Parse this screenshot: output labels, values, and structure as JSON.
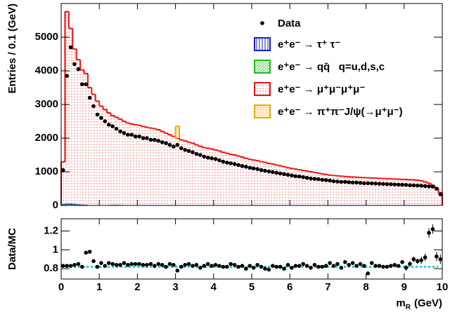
{
  "chart_data": {
    "type": "histogram",
    "y_label": "Entries / 0.1 (GeV)",
    "x_label": {
      "symbol": "m",
      "subscript": "R",
      "unit": "(GeV)"
    },
    "xlim": [
      0,
      10
    ],
    "xticks": [
      0,
      1,
      2,
      3,
      4,
      5,
      6,
      7,
      8,
      9,
      10
    ],
    "ylim": [
      0,
      6000
    ],
    "yticks": [
      0,
      1000,
      2000,
      3000,
      4000,
      5000
    ],
    "bins": [
      0,
      0.1,
      0.2,
      0.3,
      0.4,
      0.5,
      0.6,
      0.7,
      0.8,
      0.9,
      1,
      1.1,
      1.2,
      1.3,
      1.4,
      1.5,
      1.6,
      1.7,
      1.8,
      1.9,
      2,
      2.1,
      2.2,
      2.3,
      2.4,
      2.5,
      2.6,
      2.7,
      2.8,
      2.9,
      3,
      3.1,
      3.2,
      3.3,
      3.4,
      3.5,
      3.6,
      3.7,
      3.8,
      3.9,
      4,
      4.1,
      4.2,
      4.3,
      4.4,
      4.5,
      4.6,
      4.7,
      4.8,
      4.9,
      5,
      5.1,
      5.2,
      5.3,
      5.4,
      5.5,
      5.6,
      5.7,
      5.8,
      5.9,
      6,
      6.1,
      6.2,
      6.3,
      6.4,
      6.5,
      6.6,
      6.7,
      6.8,
      6.9,
      7,
      7.1,
      7.2,
      7.3,
      7.4,
      7.5,
      7.6,
      7.7,
      7.8,
      7.9,
      8,
      8.1,
      8.2,
      8.3,
      8.4,
      8.5,
      8.6,
      8.7,
      8.8,
      8.9,
      9,
      9.1,
      9.2,
      9.3,
      9.4,
      9.5,
      9.6,
      9.7,
      9.8,
      9.9,
      10
    ],
    "series": [
      {
        "name": "e⁺e⁻ → τ⁺ τ⁻",
        "color": "#1a1acc",
        "fill_style": "vertical",
        "values": [
          30,
          40,
          40,
          35,
          30,
          25,
          20,
          0,
          0,
          0,
          0,
          0,
          0,
          0,
          0,
          0,
          0,
          0,
          0,
          0,
          0,
          0,
          0,
          0,
          0,
          0,
          0,
          0,
          0,
          0,
          0,
          0,
          0,
          0,
          0,
          0,
          0,
          0,
          0,
          0,
          0,
          0,
          0,
          0,
          0,
          0,
          0,
          0,
          0,
          0,
          0,
          0,
          0,
          0,
          0,
          0,
          0,
          0,
          0,
          0,
          0,
          0,
          0,
          0,
          0,
          0,
          0,
          0,
          0,
          0,
          0,
          0,
          0,
          0,
          0,
          0,
          0,
          0,
          0,
          0,
          0,
          0,
          0,
          0,
          0,
          0,
          0,
          0,
          0,
          0,
          0,
          0,
          0,
          0,
          0,
          0,
          0,
          0,
          0,
          0
        ]
      },
      {
        "name": "e⁺e⁻ → qq̄   q=u,d,s,c",
        "color": "#22bb22",
        "fill_style": "diagonal",
        "values": [
          15,
          20,
          20,
          15,
          0,
          0,
          0,
          0,
          0,
          0,
          0,
          0,
          0,
          20,
          20,
          15,
          0,
          0,
          0,
          0,
          0,
          0,
          0,
          0,
          0,
          0,
          0,
          0,
          0,
          0,
          0,
          0,
          0,
          0,
          0,
          0,
          0,
          0,
          0,
          0,
          0,
          0,
          0,
          0,
          0,
          0,
          0,
          0,
          0,
          0,
          0,
          0,
          0,
          0,
          0,
          0,
          0,
          0,
          0,
          0,
          0,
          0,
          0,
          0,
          0,
          0,
          0,
          0,
          0,
          0,
          0,
          0,
          0,
          0,
          0,
          0,
          0,
          0,
          0,
          0,
          0,
          0,
          0,
          0,
          0,
          0,
          0,
          0,
          0,
          0,
          0,
          0,
          0,
          0,
          0,
          0,
          0,
          0,
          0,
          0
        ]
      },
      {
        "name": "e⁺e⁻ → μ⁺μ⁻μ⁺μ⁻",
        "color": "#ee1111",
        "fill_style": "dots",
        "values": [
          1250,
          5700,
          5200,
          4600,
          4300,
          4000,
          3900,
          3500,
          3300,
          3100,
          2950,
          2850,
          2750,
          2650,
          2600,
          2550,
          2500,
          2450,
          2420,
          2400,
          2380,
          2350,
          2320,
          2300,
          2280,
          2250,
          2200,
          2150,
          2100,
          2050,
          2000,
          1950,
          1920,
          1880,
          1850,
          1800,
          1760,
          1720,
          1700,
          1680,
          1650,
          1620,
          1580,
          1550,
          1520,
          1500,
          1470,
          1440,
          1400,
          1370,
          1350,
          1330,
          1300,
          1280,
          1250,
          1230,
          1200,
          1180,
          1150,
          1120,
          1100,
          1080,
          1060,
          1040,
          1020,
          1000,
          980,
          960,
          940,
          920,
          900,
          890,
          880,
          870,
          860,
          850,
          845,
          840,
          830,
          825,
          820,
          815,
          810,
          805,
          800,
          795,
          790,
          785,
          780,
          775,
          770,
          765,
          760,
          750,
          730,
          700,
          660,
          600,
          520,
          380
        ]
      },
      {
        "name": "e⁺e⁻ → π⁺π⁻J/ψ(→μ⁺μ⁻)",
        "color": "#f0a800",
        "fill_style": "boxes",
        "values": [
          0,
          0,
          0,
          0,
          0,
          0,
          0,
          0,
          0,
          0,
          0,
          0,
          0,
          0,
          0,
          0,
          0,
          0,
          0,
          0,
          0,
          0,
          0,
          0,
          0,
          0,
          0,
          0,
          0,
          0,
          350,
          0,
          0,
          0,
          0,
          0,
          0,
          0,
          0,
          0,
          0,
          0,
          0,
          0,
          0,
          0,
          0,
          0,
          0,
          0,
          0,
          0,
          0,
          0,
          0,
          0,
          0,
          0,
          0,
          0,
          0,
          0,
          0,
          0,
          0,
          0,
          0,
          0,
          0,
          0,
          0,
          0,
          0,
          0,
          0,
          0,
          0,
          0,
          0,
          0,
          0,
          0,
          0,
          0,
          0,
          0,
          0,
          0,
          0,
          0,
          0,
          0,
          0,
          0,
          0,
          0,
          0,
          0,
          0,
          0
        ]
      }
    ],
    "data": {
      "name": "Data",
      "color": "#000000",
      "values": [
        1050,
        3850,
        4700,
        4200,
        4050,
        3600,
        3600,
        3200,
        2950,
        2700,
        2600,
        2500,
        2400,
        2350,
        2280,
        2200,
        2150,
        2100,
        2100,
        2050,
        2050,
        2000,
        2000,
        1950,
        1950,
        1920,
        1880,
        1850,
        1800,
        1750,
        1800,
        1700,
        1650,
        1620,
        1580,
        1530,
        1500,
        1450,
        1420,
        1400,
        1380,
        1340,
        1300,
        1270,
        1250,
        1230,
        1200,
        1170,
        1150,
        1120,
        1100,
        1080,
        1050,
        1030,
        1010,
        990,
        970,
        950,
        930,
        910,
        890,
        870,
        860,
        840,
        820,
        800,
        790,
        780,
        760,
        750,
        740,
        720,
        710,
        700,
        700,
        690,
        680,
        680,
        670,
        660,
        660,
        655,
        650,
        645,
        640,
        635,
        630,
        625,
        620,
        615,
        610,
        600,
        595,
        590,
        585,
        575,
        565,
        560,
        500,
        330
      ]
    },
    "ratio": {
      "y_label": "Data/MC",
      "ylim": [
        0.69,
        1.33
      ],
      "yticks": [
        0.8,
        1,
        1.2
      ],
      "fit_level": 0.82,
      "fit_color": "#00d8e8",
      "values": [
        0.83,
        0.83,
        0.83,
        0.84,
        0.85,
        0.82,
        0.97,
        0.98,
        0.88,
        0.82,
        0.86,
        0.83,
        0.86,
        0.85,
        0.84,
        0.84,
        0.86,
        0.84,
        0.85,
        0.85,
        0.85,
        0.84,
        0.84,
        0.85,
        0.83,
        0.85,
        0.84,
        0.82,
        0.85,
        0.84,
        0.78,
        0.82,
        0.84,
        0.85,
        0.83,
        0.84,
        0.81,
        0.83,
        0.85,
        0.83,
        0.84,
        0.83,
        0.82,
        0.82,
        0.85,
        0.84,
        0.82,
        0.83,
        0.8,
        0.83,
        0.81,
        0.84,
        0.82,
        0.8,
        0.79,
        0.83,
        0.82,
        0.82,
        0.8,
        0.84,
        0.81,
        0.83,
        0.83,
        0.85,
        0.83,
        0.81,
        0.84,
        0.82,
        0.82,
        0.83,
        0.86,
        0.83,
        0.85,
        0.81,
        0.87,
        0.84,
        0.86,
        0.83,
        0.85,
        0.83,
        0.75,
        0.86,
        0.83,
        0.83,
        0.82,
        0.82,
        0.83,
        0.84,
        0.83,
        0.87,
        0.81,
        0.85,
        0.9,
        0.88,
        0.89,
        0.92,
        1.18,
        1.22,
        0.93,
        0.9
      ],
      "errors": [
        0.01,
        0.01,
        0.01,
        0.01,
        0.01,
        0.01,
        0.01,
        0.01,
        0.01,
        0.01,
        0.01,
        0.01,
        0.01,
        0.01,
        0.01,
        0.01,
        0.01,
        0.01,
        0.01,
        0.01,
        0.01,
        0.01,
        0.01,
        0.01,
        0.01,
        0.01,
        0.01,
        0.01,
        0.01,
        0.01,
        0.01,
        0.01,
        0.01,
        0.01,
        0.01,
        0.01,
        0.01,
        0.01,
        0.01,
        0.01,
        0.015,
        0.015,
        0.015,
        0.015,
        0.015,
        0.015,
        0.015,
        0.015,
        0.015,
        0.015,
        0.015,
        0.015,
        0.015,
        0.015,
        0.015,
        0.015,
        0.015,
        0.015,
        0.015,
        0.015,
        0.015,
        0.015,
        0.015,
        0.015,
        0.015,
        0.015,
        0.015,
        0.015,
        0.015,
        0.015,
        0.02,
        0.02,
        0.02,
        0.02,
        0.02,
        0.02,
        0.02,
        0.02,
        0.02,
        0.02,
        0.02,
        0.02,
        0.02,
        0.02,
        0.02,
        0.02,
        0.02,
        0.02,
        0.02,
        0.02,
        0.03,
        0.03,
        0.03,
        0.03,
        0.04,
        0.04,
        0.05,
        0.05,
        0.05,
        0.05
      ]
    }
  }
}
